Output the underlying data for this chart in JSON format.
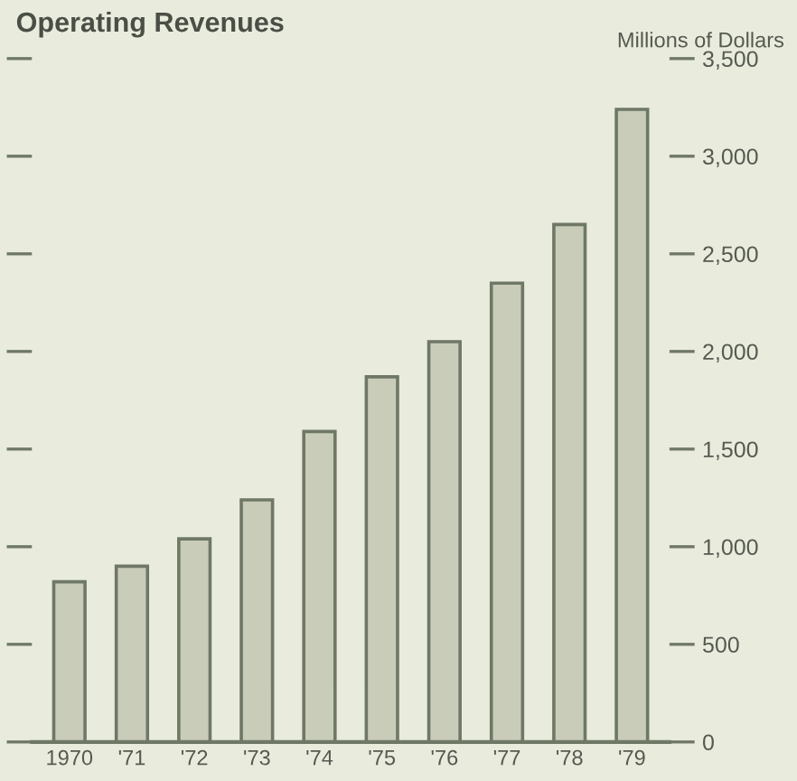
{
  "chart_data": {
    "type": "bar",
    "title": "Operating Revenues",
    "ylabel": "Millions of Dollars",
    "categories": [
      "1970",
      "'71",
      "'72",
      "'73",
      "'74",
      "'75",
      "'76",
      "'77",
      "'78",
      "'79"
    ],
    "values": [
      820,
      900,
      1040,
      1240,
      1590,
      1870,
      2050,
      2350,
      2650,
      3240
    ],
    "color": "#c9ccb9",
    "ylim": [
      0,
      3500
    ],
    "yticks": [
      0,
      {
        "value": 500,
        "label": "500"
      },
      {
        "value": 1000,
        "label": "1,000"
      },
      {
        "value": 1500,
        "label": "1,500"
      },
      {
        "value": 2000,
        "label": "2,000"
      },
      {
        "value": 2500,
        "label": "2,500"
      },
      {
        "value": 3000,
        "label": "3,000"
      },
      {
        "value": 3500,
        "label": "3,500"
      }
    ],
    "grid": false
  }
}
